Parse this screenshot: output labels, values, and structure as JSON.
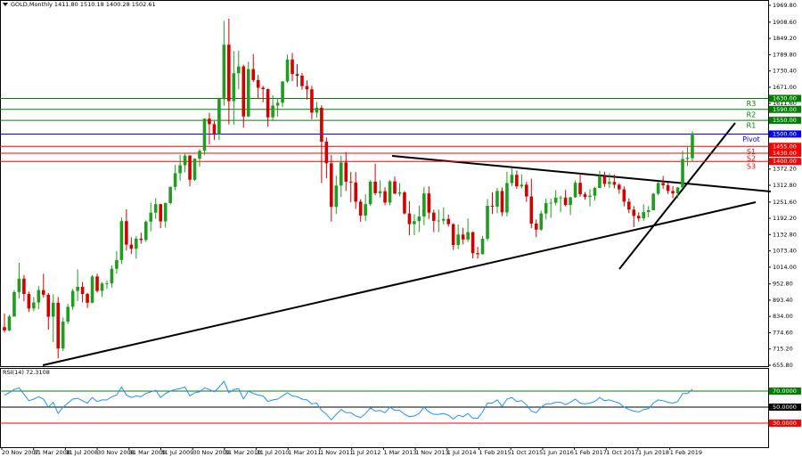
{
  "chart_data": [
    {
      "type": "candlestick",
      "title": "GOLD,Monthly 1411.80 1510.18 1400.28 1502.61",
      "up_color": "#1f9d1f",
      "down_color": "#d40000",
      "ylim": [
        655.8,
        1969.8
      ],
      "yticks": [
        {
          "value": 1969.8,
          "label": "1969.80"
        },
        {
          "value": 1908.6,
          "label": "1908.60"
        },
        {
          "value": 1849.2,
          "label": "1849.20"
        },
        {
          "value": 1789.8,
          "label": "1789.80"
        },
        {
          "value": 1730.4,
          "label": "1730.40"
        },
        {
          "value": 1671,
          "label": "1671.00"
        },
        {
          "value": 1611.6,
          "label": "1611.60"
        },
        {
          "value": 1372.2,
          "label": "1372.20"
        },
        {
          "value": 1312.8,
          "label": "1312.80"
        },
        {
          "value": 1251.6,
          "label": "1251.60"
        },
        {
          "value": 1192.2,
          "label": "1192.20"
        },
        {
          "value": 1132.8,
          "label": "1132.80"
        },
        {
          "value": 1073.4,
          "label": "1073.40"
        },
        {
          "value": 1014,
          "label": "1014.00"
        },
        {
          "value": 952.8,
          "label": "952.80"
        },
        {
          "value": 893.4,
          "label": "893.40"
        },
        {
          "value": 834,
          "label": "834.00"
        },
        {
          "value": 774.6,
          "label": "774.60"
        },
        {
          "value": 715.2,
          "label": "715.20"
        },
        {
          "value": 655.8,
          "label": "655.80"
        }
      ],
      "levels": [
        {
          "name": "R3",
          "value": 1630,
          "label": "1630.00",
          "color": "#008000"
        },
        {
          "name": "R2",
          "value": 1590,
          "label": "1590.00",
          "color": "#008000"
        },
        {
          "name": "R1",
          "value": 1550,
          "label": "1550.00",
          "color": "#008000"
        },
        {
          "name": "Pivot",
          "value": 1500,
          "label": "1500.00",
          "color": "#0000ff"
        },
        {
          "name": "S1",
          "value": 1455,
          "label": "1455.00",
          "color": "#ff0000"
        },
        {
          "name": "S2",
          "value": 1430,
          "label": "1430.00",
          "color": "#ff0000"
        },
        {
          "name": "S3",
          "value": 1400,
          "label": "1400.00",
          "color": "#ff0000"
        }
      ],
      "open": [
        795,
        783,
        834,
        923,
        972,
        916,
        863,
        885,
        930,
        913,
        833,
        884,
        717,
        815,
        869,
        927,
        942,
        916,
        884,
        980,
        927,
        954,
        955,
        1008,
        1040,
        1182,
        1096,
        1081,
        1118,
        1113,
        1180,
        1213,
        1244,
        1181,
        1248,
        1307,
        1357,
        1386,
        1421,
        1333,
        1410,
        1439,
        1556,
        1536,
        1500,
        1628,
        1826,
        1620,
        1722,
        1747,
        1564,
        1737,
        1697,
        1669,
        1664,
        1561,
        1604,
        1614,
        1692,
        1772,
        1719,
        1713,
        1675,
        1663,
        1578,
        1596,
        1472,
        1393,
        1234,
        1312,
        1396,
        1326,
        1323,
        1253,
        1202,
        1244,
        1326,
        1284,
        1291,
        1250,
        1327,
        1282,
        1287,
        1210,
        1171,
        1182,
        1199,
        1283,
        1213,
        1183,
        1184,
        1190,
        1171,
        1095,
        1133,
        1115,
        1142,
        1065,
        1061,
        1118,
        1238,
        1235,
        1292,
        1214,
        1321,
        1351,
        1309,
        1315,
        1272,
        1173,
        1151,
        1210,
        1248,
        1249,
        1268,
        1268,
        1241,
        1269,
        1322,
        1280,
        1270,
        1275,
        1303,
        1345,
        1318,
        1325,
        1315,
        1298,
        1253,
        1224,
        1201,
        1192,
        1215,
        1222,
        1282,
        1321,
        1313,
        1292,
        1283,
        1305,
        1409,
        1411.8
      ],
      "high": [
        845,
        840,
        930,
        1030,
        985,
        925,
        905,
        945,
        990,
        920,
        915,
        905,
        830,
        880,
        935,
        1006,
        960,
        920,
        985,
        990,
        960,
        965,
        1020,
        1072,
        1195,
        1225,
        1123,
        1128,
        1140,
        1185,
        1249,
        1266,
        1245,
        1250,
        1308,
        1388,
        1424,
        1431,
        1423,
        1411,
        1445,
        1557,
        1577,
        1547,
        1632,
        1913,
        1921,
        1803,
        1804,
        1753,
        1764,
        1792,
        1716,
        1676,
        1666,
        1641,
        1631,
        1693,
        1790,
        1796,
        1755,
        1723,
        1696,
        1676,
        1617,
        1605,
        1487,
        1424,
        1348,
        1420,
        1434,
        1361,
        1361,
        1262,
        1280,
        1332,
        1392,
        1331,
        1306,
        1332,
        1345,
        1320,
        1292,
        1255,
        1207,
        1239,
        1307,
        1309,
        1224,
        1224,
        1232,
        1206,
        1174,
        1170,
        1158,
        1192,
        1143,
        1088,
        1128,
        1263,
        1287,
        1303,
        1305,
        1362,
        1375,
        1367,
        1353,
        1326,
        1337,
        1188,
        1220,
        1264,
        1264,
        1295,
        1275,
        1296,
        1271,
        1331,
        1357,
        1288,
        1299,
        1307,
        1366,
        1362,
        1356,
        1352,
        1320,
        1309,
        1265,
        1237,
        1214,
        1243,
        1237,
        1285,
        1326,
        1347,
        1324,
        1310,
        1306,
        1439,
        1453,
        1510.18
      ],
      "low": [
        775,
        780,
        832,
        900,
        890,
        850,
        853,
        860,
        903,
        786,
        740,
        681,
        708,
        807,
        858,
        890,
        885,
        865,
        882,
        921,
        905,
        935,
        940,
        990,
        1025,
        1075,
        1062,
        1045,
        1100,
        1106,
        1145,
        1190,
        1156,
        1158,
        1243,
        1295,
        1330,
        1360,
        1309,
        1329,
        1381,
        1424,
        1462,
        1478,
        1479,
        1603,
        1535,
        1534,
        1663,
        1523,
        1562,
        1690,
        1628,
        1616,
        1527,
        1548,
        1564,
        1598,
        1687,
        1693,
        1672,
        1662,
        1626,
        1554,
        1560,
        1321,
        1338,
        1180,
        1208,
        1270,
        1292,
        1251,
        1227,
        1180,
        1182,
        1238,
        1277,
        1268,
        1240,
        1240,
        1281,
        1273,
        1206,
        1130,
        1131,
        1142,
        1167,
        1190,
        1142,
        1142,
        1170,
        1162,
        1077,
        1080,
        1097,
        1106,
        1046,
        1045,
        1061,
        1110,
        1208,
        1211,
        1200,
        1199,
        1310,
        1300,
        1301,
        1252,
        1156,
        1123,
        1146,
        1188,
        1194,
        1240,
        1214,
        1236,
        1204,
        1267,
        1271,
        1260,
        1236,
        1257,
        1302,
        1307,
        1303,
        1302,
        1282,
        1236,
        1211,
        1160,
        1180,
        1183,
        1196,
        1221,
        1276,
        1300,
        1281,
        1266,
        1266,
        1301,
        1383,
        1400.28
      ],
      "close": [
        783,
        834,
        923,
        972,
        916,
        863,
        885,
        930,
        913,
        833,
        884,
        717,
        815,
        869,
        927,
        942,
        916,
        884,
        980,
        927,
        954,
        955,
        1008,
        1040,
        1182,
        1096,
        1081,
        1118,
        1113,
        1180,
        1213,
        1244,
        1181,
        1248,
        1307,
        1357,
        1386,
        1421,
        1333,
        1410,
        1439,
        1556,
        1536,
        1500,
        1628,
        1826,
        1620,
        1722,
        1747,
        1564,
        1737,
        1697,
        1669,
        1664,
        1561,
        1604,
        1614,
        1692,
        1772,
        1719,
        1713,
        1675,
        1663,
        1578,
        1596,
        1472,
        1393,
        1234,
        1312,
        1396,
        1326,
        1323,
        1253,
        1202,
        1244,
        1326,
        1284,
        1291,
        1250,
        1327,
        1282,
        1287,
        1210,
        1171,
        1182,
        1199,
        1283,
        1213,
        1183,
        1184,
        1190,
        1171,
        1095,
        1133,
        1115,
        1142,
        1065,
        1061,
        1118,
        1238,
        1235,
        1292,
        1214,
        1321,
        1351,
        1309,
        1315,
        1272,
        1173,
        1151,
        1210,
        1248,
        1249,
        1268,
        1268,
        1241,
        1269,
        1322,
        1280,
        1270,
        1275,
        1303,
        1345,
        1318,
        1325,
        1315,
        1298,
        1253,
        1224,
        1201,
        1192,
        1215,
        1222,
        1282,
        1321,
        1313,
        1292,
        1283,
        1305,
        1409,
        1413,
        1502.61
      ]
    },
    {
      "type": "line",
      "title": "RSI(14) 72.3108",
      "color": "#1e90ff",
      "ylim": [
        0,
        100
      ],
      "levels": [
        {
          "value": 70,
          "label": "70.0000",
          "color": "#008000"
        },
        {
          "value": 50,
          "label": "50.0000",
          "color": "#000000"
        },
        {
          "value": 30,
          "label": "30.0000",
          "color": "#ff0000"
        }
      ],
      "values": [
        65,
        68,
        72,
        74,
        66,
        58,
        60,
        63,
        60,
        50,
        56,
        42,
        50,
        55,
        60,
        61,
        58,
        55,
        62,
        57,
        59,
        59,
        63,
        65,
        75,
        65,
        62,
        64,
        63,
        67,
        69,
        71,
        62,
        67,
        70,
        72,
        73,
        75,
        64,
        68,
        69,
        74,
        72,
        69,
        75,
        82,
        68,
        72,
        73,
        60,
        70,
        67,
        65,
        64,
        57,
        59,
        60,
        64,
        68,
        64,
        63,
        60,
        59,
        54,
        55,
        46,
        41,
        34,
        41,
        47,
        43,
        43,
        39,
        37,
        42,
        49,
        45,
        46,
        43,
        50,
        46,
        46,
        41,
        38,
        39,
        42,
        50,
        44,
        41,
        41,
        42,
        40,
        35,
        40,
        38,
        42,
        36,
        36,
        44,
        55,
        55,
        59,
        51,
        60,
        62,
        57,
        58,
        53,
        45,
        43,
        50,
        54,
        54,
        56,
        56,
        53,
        56,
        60,
        55,
        54,
        55,
        57,
        62,
        58,
        59,
        57,
        55,
        50,
        47,
        45,
        44,
        47,
        48,
        55,
        59,
        58,
        56,
        55,
        57,
        67,
        67,
        72.3108
      ]
    }
  ],
  "x_labels": [
    "20 Nov 2007",
    "31 Mar 2008",
    "31 Jul 2008",
    "30 Nov 2008",
    "31 Mar 2009",
    "31 Jul 2009",
    "30 Nov 2009",
    "31 Mar 2010",
    "31 Jul 2010",
    "1 Mar 2011",
    "1 Nov 2011",
    "1 Jul 2012",
    "1 Mar 2013",
    "1 Nov 2013",
    "1 Jul 2014",
    "1 Feb 2015",
    "1 Oct 2015",
    "1 Jun 2016",
    "1 Feb 2017",
    "1 Oct 2017",
    "1 Jun 2018",
    "1 Feb 2019"
  ]
}
